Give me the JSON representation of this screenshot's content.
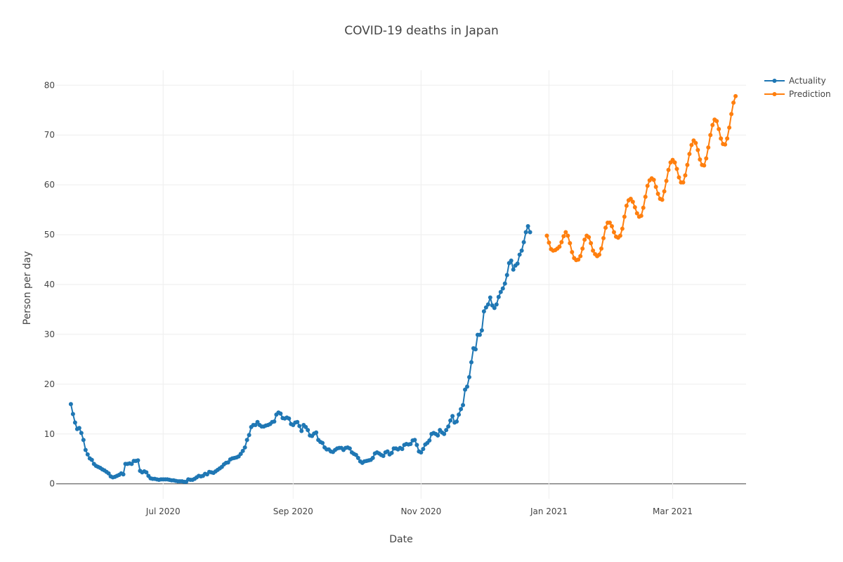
{
  "chart_data": {
    "type": "line",
    "title": "COVID-19 deaths in Japan",
    "xlabel": "Date",
    "ylabel": "Person per day",
    "xlim": [
      "2020-05-11",
      "2021-04-05"
    ],
    "ylim": [
      -3,
      83
    ],
    "x_ticks": [
      {
        "date": "2020-07-01",
        "label": "Jul 2020"
      },
      {
        "date": "2020-09-01",
        "label": "Sep 2020"
      },
      {
        "date": "2020-11-01",
        "label": "Nov 2020"
      },
      {
        "date": "2021-01-01",
        "label": "Jan 2021"
      },
      {
        "date": "2021-03-01",
        "label": "Mar 2021"
      }
    ],
    "y_ticks": [
      0,
      10,
      20,
      30,
      40,
      50,
      60,
      70,
      80
    ],
    "grid": true,
    "legend": "top-right",
    "series": [
      {
        "name": "Actuality",
        "color": "#1f77b4",
        "start": "2020-05-18",
        "values": [
          16,
          14,
          12.3,
          11,
          11.2,
          10.2,
          8.8,
          6.8,
          5.9,
          5.1,
          4.8,
          4,
          3.6,
          3.4,
          3.2,
          2.9,
          2.7,
          2.4,
          2.1,
          1.5,
          1.3,
          1.4,
          1.6,
          1.8,
          2.1,
          1.9,
          4,
          4,
          4.1,
          4,
          4.6,
          4.6,
          4.7,
          2.6,
          2.3,
          2.5,
          2.3,
          1.6,
          1.1,
          1,
          1,
          0.9,
          0.8,
          0.9,
          0.9,
          0.9,
          0.9,
          0.8,
          0.7,
          0.7,
          0.6,
          0.5,
          0.5,
          0.5,
          0.4,
          0.4,
          0.9,
          0.8,
          0.8,
          1,
          1.3,
          1.6,
          1.5,
          1.6,
          2,
          1.9,
          2.4,
          2.3,
          2.2,
          2.5,
          2.8,
          3.1,
          3.4,
          3.9,
          4.2,
          4.3,
          4.9,
          5.1,
          5.2,
          5.3,
          5.5,
          6,
          6.6,
          7.3,
          8.8,
          9.8,
          11.4,
          11.8,
          11.8,
          12.4,
          11.8,
          11.5,
          11.5,
          11.7,
          11.8,
          12,
          12.4,
          12.5,
          13.9,
          14.3,
          14.1,
          13.2,
          13.1,
          13.3,
          13.1,
          12,
          11.8,
          12.3,
          12.4,
          11.6,
          10.6,
          11.8,
          11.4,
          10.8,
          9.7,
          9.6,
          10.1,
          10.3,
          8.8,
          8.4,
          8.2,
          7.3,
          6.9,
          6.9,
          6.5,
          6.4,
          6.8,
          7.1,
          7.2,
          7.2,
          6.8,
          7.2,
          7.3,
          7.1,
          6.3,
          6,
          5.8,
          5.2,
          4.5,
          4.2,
          4.5,
          4.6,
          4.7,
          4.8,
          5.2,
          6.1,
          6.3,
          6.1,
          5.8,
          5.6,
          6.3,
          6.5,
          5.9,
          6.2,
          7.1,
          7.1,
          6.9,
          7.2,
          7,
          7.8,
          8,
          7.9,
          8,
          8.7,
          8.8,
          7.8,
          6.5,
          6.3,
          7,
          7.9,
          8.2,
          8.7,
          10,
          10.2,
          10,
          9.7,
          10.8,
          10.3,
          10,
          10.8,
          11.5,
          12.7,
          13.6,
          12.3,
          12.5,
          13.9,
          15,
          15.8,
          18.9,
          19.5,
          21.4,
          24.4,
          27.2,
          27,
          29.9,
          29.9,
          30.8,
          34.6,
          35.4,
          36,
          37.4,
          35.8,
          35.3,
          36,
          37.5,
          38.5,
          39.2,
          40.2,
          41.9,
          44.3,
          44.8,
          43,
          43.8,
          44.2,
          46,
          46.8,
          48.5,
          50.5,
          51.7,
          50.5
        ]
      },
      {
        "name": "Prediction",
        "color": "#ff7f0e",
        "start": "2020-12-31",
        "values": [
          49.8,
          48.4,
          47.1,
          46.8,
          46.9,
          47.2,
          47.6,
          48.5,
          49.7,
          50.5,
          49.8,
          48.3,
          46.5,
          45.3,
          44.9,
          45,
          45.7,
          47.2,
          49,
          49.8,
          49.5,
          48.3,
          46.8,
          46.1,
          45.7,
          46,
          47.2,
          49.3,
          51.4,
          52.4,
          52.4,
          51.7,
          50.5,
          49.6,
          49.4,
          49.8,
          51.2,
          53.6,
          55.8,
          56.9,
          57.2,
          56.6,
          55.5,
          54.3,
          53.6,
          53.8,
          55.4,
          57.6,
          59.8,
          60.9,
          61.3,
          61,
          59.6,
          58.2,
          57.2,
          57,
          58.7,
          60.8,
          63,
          64.5,
          65,
          64.5,
          63.2,
          61.5,
          60.5,
          60.5,
          61.9,
          64,
          66.2,
          68,
          68.9,
          68.4,
          67,
          65.1,
          64,
          63.9,
          65.3,
          67.5,
          70,
          72,
          73.1,
          72.8,
          71.2,
          69.3,
          68.2,
          68.1,
          69.3,
          71.5,
          74.2,
          76.5,
          77.8
        ]
      }
    ]
  }
}
